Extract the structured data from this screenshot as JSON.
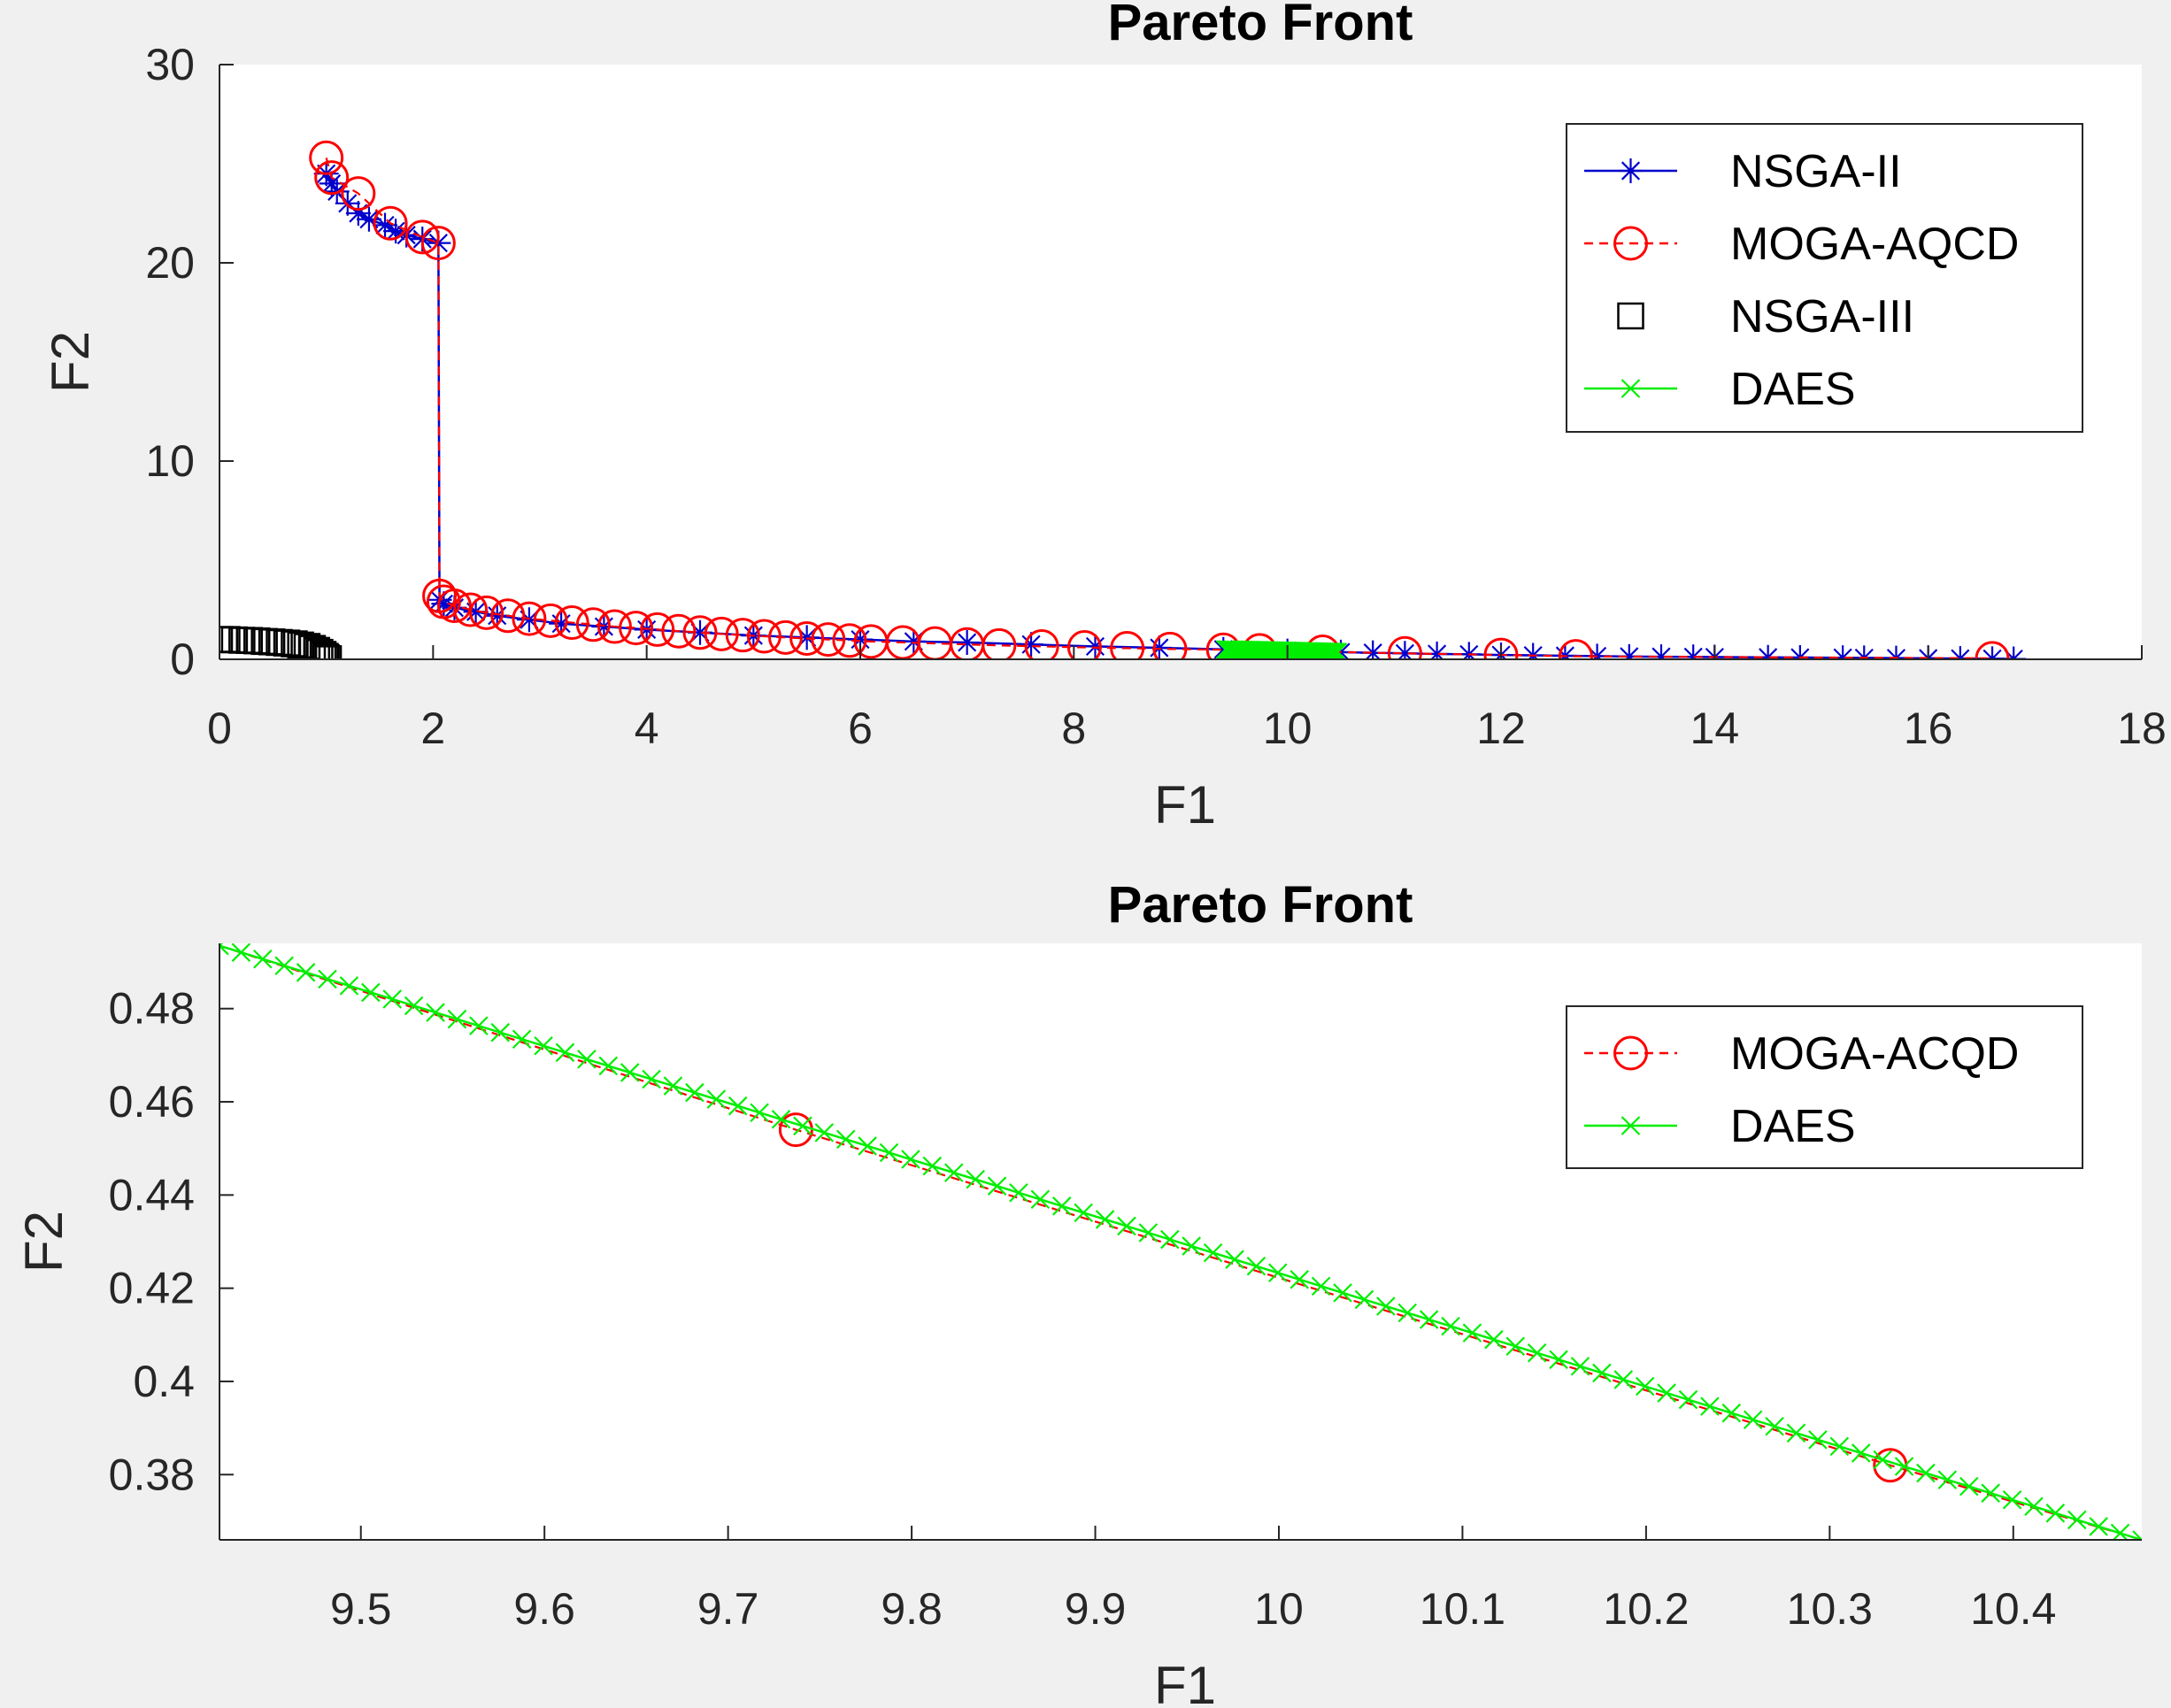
{
  "figure": {
    "background": "#f0f0f0"
  },
  "chart_data": [
    {
      "type": "line",
      "title": "Pareto Front",
      "xlabel": "F1",
      "ylabel": "F2",
      "xlim": [
        0,
        18
      ],
      "ylim": [
        0,
        30
      ],
      "xticks": [
        "0",
        "2",
        "4",
        "6",
        "8",
        "10",
        "12",
        "14",
        "16",
        "18"
      ],
      "yticks": [
        "0",
        "10",
        "20",
        "30"
      ],
      "grid": false,
      "legend_position": "top-right",
      "series": [
        {
          "name": "NSGA-II",
          "color": "#0000cc",
          "line": "solid",
          "marker": "asterisk",
          "x": [
            1.0,
            1.05,
            1.1,
            1.2,
            1.3,
            1.4,
            1.55,
            1.65,
            1.75,
            1.9,
            2.05,
            2.06,
            2.1,
            2.2,
            2.4,
            2.6,
            2.9,
            3.2,
            3.6,
            4.0,
            4.5,
            5.0,
            5.5,
            6.0,
            6.5,
            7.0,
            7.6,
            8.2,
            8.8,
            9.4,
            10.0,
            10.5,
            10.8,
            11.1,
            11.4,
            11.7,
            12.0,
            12.3,
            12.6,
            12.9,
            13.2,
            13.5,
            13.8,
            14.0,
            14.5,
            14.8,
            15.2,
            15.4,
            15.7,
            16.0,
            16.3,
            16.6,
            16.8
          ],
          "y": [
            24.5,
            24.0,
            23.6,
            23.0,
            22.5,
            22.2,
            21.9,
            21.6,
            21.4,
            21.2,
            21.0,
            3.0,
            2.8,
            2.6,
            2.4,
            2.2,
            2.0,
            1.8,
            1.65,
            1.5,
            1.35,
            1.2,
            1.1,
            1.0,
            0.9,
            0.85,
            0.75,
            0.65,
            0.58,
            0.5,
            0.42,
            0.36,
            0.33,
            0.3,
            0.27,
            0.25,
            0.22,
            0.2,
            0.18,
            0.16,
            0.14,
            0.13,
            0.12,
            0.11,
            0.1,
            0.09,
            0.08,
            0.07,
            0.06,
            0.05,
            0.04,
            0.03,
            0.02
          ]
        },
        {
          "name": "MOGA-AQCD",
          "color": "#ff0000",
          "line": "dashed",
          "marker": "circle",
          "x": [
            1.0,
            1.05,
            1.3,
            1.6,
            1.9,
            2.05,
            2.06,
            2.1,
            2.2,
            2.35,
            2.5,
            2.7,
            2.9,
            3.1,
            3.3,
            3.5,
            3.7,
            3.9,
            4.1,
            4.3,
            4.5,
            4.7,
            4.9,
            5.1,
            5.3,
            5.5,
            5.7,
            5.9,
            6.1,
            6.4,
            6.7,
            7.0,
            7.3,
            7.7,
            8.1,
            8.5,
            8.9,
            9.4,
            9.74,
            10.33,
            11.1,
            12.0,
            12.7,
            16.6
          ],
          "y": [
            25.3,
            24.3,
            23.5,
            22.0,
            21.3,
            21.0,
            3.2,
            2.9,
            2.7,
            2.5,
            2.35,
            2.2,
            2.05,
            1.95,
            1.85,
            1.75,
            1.65,
            1.58,
            1.5,
            1.42,
            1.35,
            1.28,
            1.22,
            1.16,
            1.1,
            1.05,
            1.0,
            0.95,
            0.9,
            0.85,
            0.8,
            0.75,
            0.7,
            0.65,
            0.6,
            0.56,
            0.52,
            0.48,
            0.454,
            0.382,
            0.3,
            0.22,
            0.15,
            0.05
          ]
        },
        {
          "name": "NSGA-III",
          "color": "#000000",
          "line": "none",
          "marker": "square",
          "x": [
            0.0,
            0.07,
            0.14,
            0.21,
            0.28,
            0.35,
            0.42,
            0.49,
            0.56,
            0.63,
            0.7,
            0.76,
            0.82,
            0.87,
            0.91,
            0.94,
            0.97,
            0.99,
            1.0,
            1.02
          ],
          "y": [
            1.0,
            1.0,
            0.98,
            0.96,
            0.95,
            0.93,
            0.9,
            0.88,
            0.85,
            0.82,
            0.78,
            0.72,
            0.65,
            0.55,
            0.45,
            0.35,
            0.25,
            0.15,
            0.08,
            0.03
          ]
        },
        {
          "name": "DAES",
          "color": "#00ee00",
          "line": "solid",
          "marker": "x",
          "x": [
            9.42,
            10.47
          ],
          "y": [
            0.493,
            0.366
          ],
          "n_markers": 60
        }
      ]
    },
    {
      "type": "line",
      "title": "Pareto Front",
      "xlabel": "F1",
      "ylabel": "F2",
      "xlim": [
        9.423,
        10.47
      ],
      "ylim": [
        0.366,
        0.494
      ],
      "xticks": [
        "9.5",
        "9.6",
        "9.7",
        "9.8",
        "9.9",
        "10",
        "10.1",
        "10.2",
        "10.3",
        "10.4"
      ],
      "yticks": [
        "0.38",
        "0.4",
        "0.42",
        "0.44",
        "0.46",
        "0.48"
      ],
      "grid": false,
      "legend_position": "top-right",
      "series": [
        {
          "name": "MOGA-ACQD",
          "color": "#ff0000",
          "line": "dashed",
          "marker": "circle",
          "x": [
            9.423,
            9.737,
            10.333,
            10.47
          ],
          "y": [
            0.4935,
            0.454,
            0.382,
            0.366
          ],
          "marker_x": [
            9.737,
            10.333
          ],
          "marker_y": [
            0.454,
            0.382
          ]
        },
        {
          "name": "DAES",
          "color": "#00ee00",
          "line": "solid",
          "marker": "x",
          "x": [
            9.423,
            10.47
          ],
          "y": [
            0.4935,
            0.366
          ],
          "n_markers": 90
        }
      ]
    }
  ]
}
